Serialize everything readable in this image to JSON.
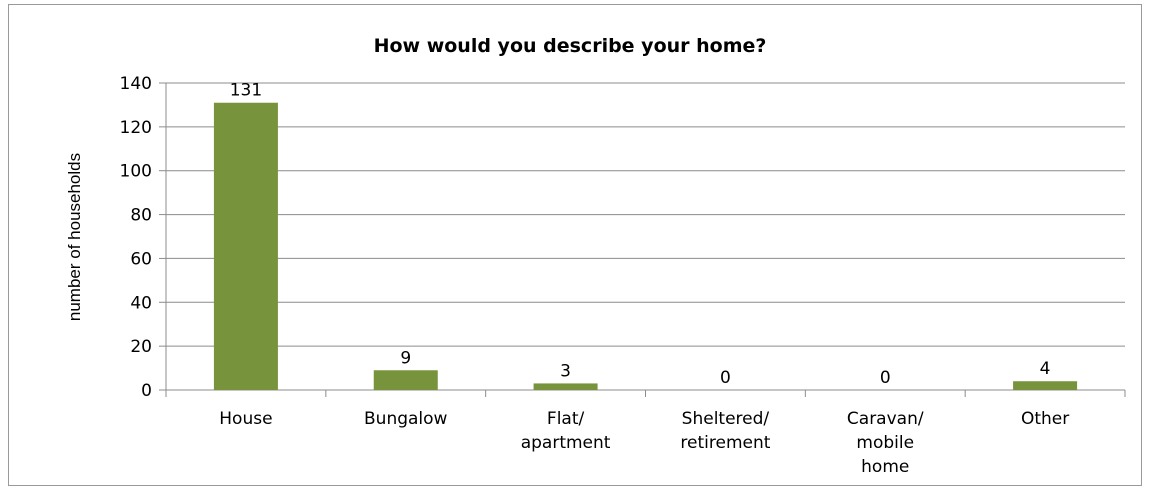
{
  "chart_data": {
    "type": "bar",
    "title": "How would you describe your home?",
    "ylabel": "number of households",
    "xlabel": "",
    "categories": [
      [
        "House"
      ],
      [
        "Bungalow"
      ],
      [
        "Flat/",
        "apartment"
      ],
      [
        "Sheltered/",
        "retirement"
      ],
      [
        "Caravan/",
        "mobile",
        "home"
      ],
      [
        "Other"
      ]
    ],
    "values": [
      131,
      9,
      3,
      0,
      0,
      4
    ],
    "data_labels": [
      "131",
      "9",
      "3",
      "0",
      "0",
      "4"
    ],
    "ylim": [
      0,
      140
    ],
    "yticks": [
      0,
      20,
      40,
      60,
      80,
      100,
      120,
      140
    ],
    "grid": true,
    "legend": "none",
    "bar_color": "#77933C"
  }
}
